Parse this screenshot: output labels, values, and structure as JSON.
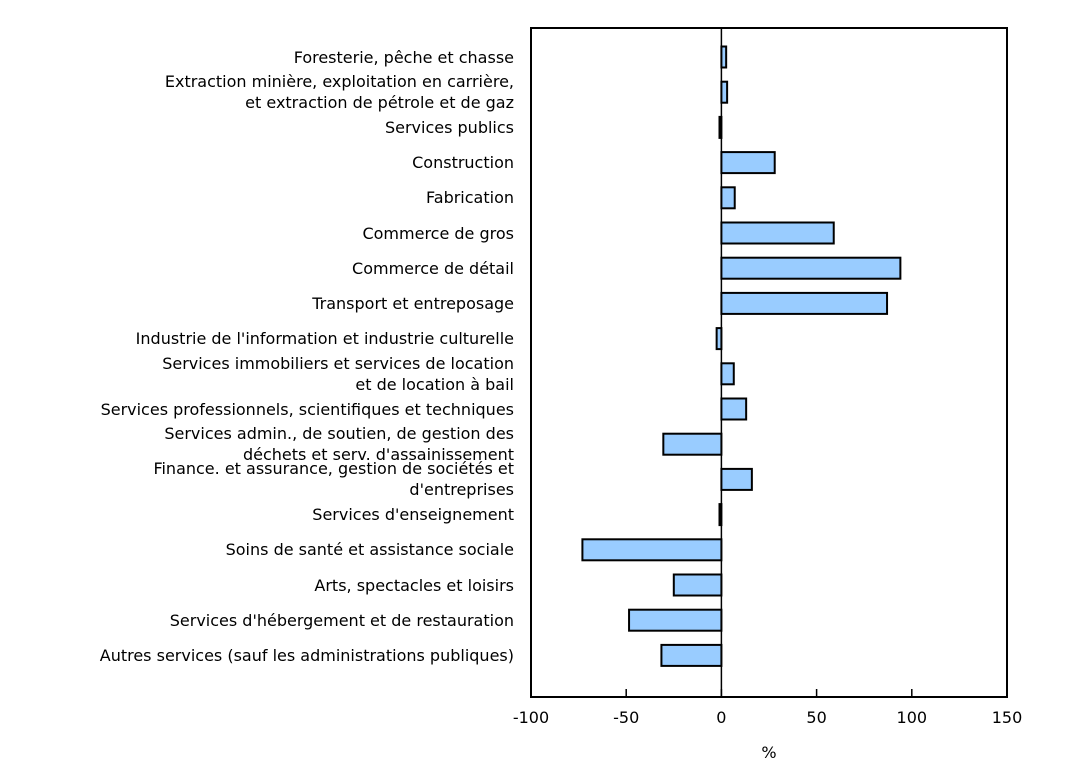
{
  "chart_data": {
    "type": "bar",
    "orientation": "horizontal",
    "title": "",
    "xlabel": "%",
    "ylabel": "",
    "xlim": [
      -100,
      150
    ],
    "xticks": [
      -100,
      -50,
      0,
      50,
      100,
      150
    ],
    "grid": false,
    "legend": null,
    "bar_color": "#99ccff",
    "categories": [
      "Foresterie, pêche et chasse",
      "Extraction minière, exploitation en carrière,\net extraction de pétrole et de gaz",
      "Services publics",
      "Construction",
      "Fabrication",
      "Commerce de gros",
      "Commerce de détail",
      "Transport et entreposage",
      "Industrie de l'information et industrie culturelle",
      "Services immobiliers et services de location\net de location à bail",
      "Services professionnels, scientifiques et techniques",
      "Services admin., de soutien, de gestion des\ndéchets et serv. d'assainissement",
      "Finance. et assurance, gestion de sociétés et\nd'entreprises",
      "Services d'enseignement",
      "Soins de santé et assistance sociale",
      "Arts, spectacles et loisirs",
      "Services d'hébergement et de restauration",
      "Autres services (sauf les administrations publiques)"
    ],
    "values": [
      2.5,
      3,
      -1,
      28,
      7,
      59,
      94,
      87,
      -2.5,
      6.5,
      13,
      -30.5,
      16,
      -1,
      -73,
      -25,
      -48.5,
      -31.5
    ]
  },
  "axis": {
    "ticks": [
      "-100",
      "-50",
      "0",
      "50",
      "100",
      "150"
    ],
    "title": "%"
  }
}
